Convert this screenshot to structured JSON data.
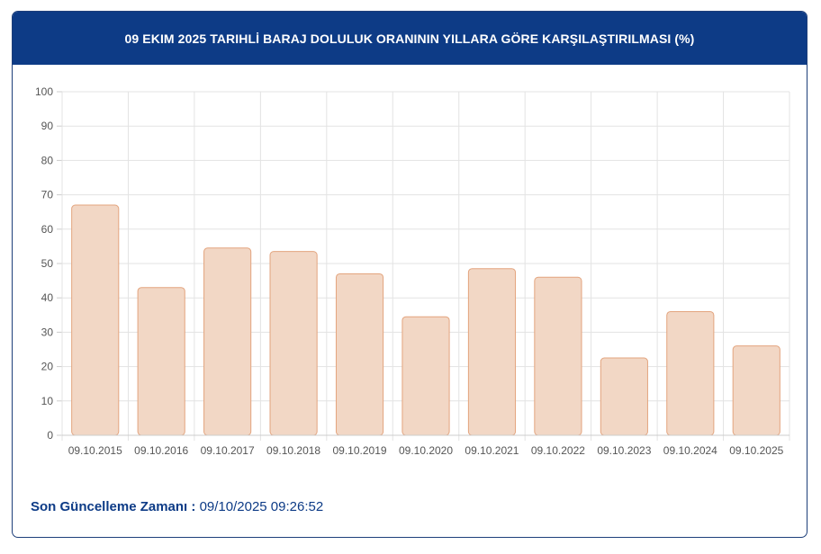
{
  "header": {
    "title": "09 EKIM 2025 TARIHLİ BARAJ DOLULUK ORANININ YILLARA GÖRE KARŞILAŞTIRILMASI (%)"
  },
  "chart_data": {
    "type": "bar",
    "categories": [
      "09.10.2015",
      "09.10.2016",
      "09.10.2017",
      "09.10.2018",
      "09.10.2019",
      "09.10.2020",
      "09.10.2021",
      "09.10.2022",
      "09.10.2023",
      "09.10.2024",
      "09.10.2025"
    ],
    "values": [
      67,
      43,
      54.5,
      53.5,
      47,
      34.5,
      48.5,
      46,
      22.5,
      36,
      26
    ],
    "ylim": [
      0,
      100
    ],
    "yticks": [
      "0",
      "10",
      "20",
      "30",
      "40",
      "50",
      "60",
      "70",
      "80",
      "90",
      "100"
    ],
    "grid": true,
    "colors": {
      "bar_fill": "#f2d7c5",
      "bar_stroke": "#e3a47e",
      "grid": "#e3e3e3"
    }
  },
  "footer": {
    "label": "Son Güncelleme Zamanı :",
    "timestamp": "09/10/2025 09:26:52"
  }
}
